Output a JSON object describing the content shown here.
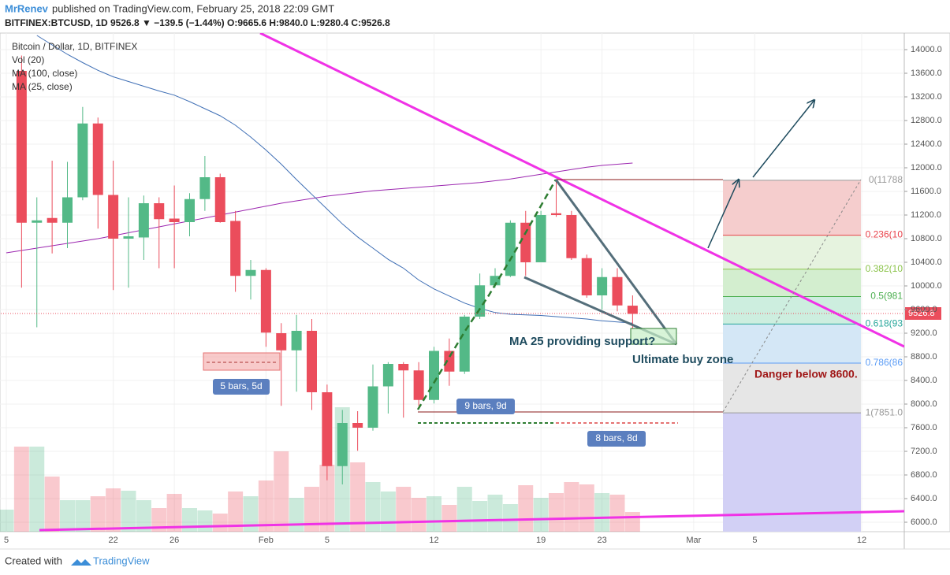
{
  "header": {
    "author": "MrRenev",
    "published": "published on TradingView.com, February 25, 2018 22:09 GMT",
    "symbol_line": "BITFINEX:BTCUSD, 1D 9526.8 ▼ −139.5 (−1.44%) O:9665.6 H:9840.0 L:9280.4 C:9526.8"
  },
  "footer": {
    "created": "Created with",
    "brand": "TradingView"
  },
  "chart_data": {
    "type": "candlestick",
    "title": "Bitcoin / Dollar, 1D, BITFINEX",
    "categories": [
      "5",
      null,
      null,
      null,
      null,
      null,
      null,
      "22",
      null,
      null,
      null,
      "26",
      null,
      null,
      null,
      null,
      null,
      "Feb",
      null,
      null,
      null,
      "5",
      null,
      null,
      null,
      null,
      null,
      null,
      "12",
      null,
      null,
      null,
      null,
      null,
      null,
      "19",
      null,
      null,
      null,
      "23",
      null,
      null,
      null,
      null,
      null,
      "Mar",
      null,
      null,
      null,
      "5",
      null,
      null,
      null,
      null,
      null,
      null,
      "12"
    ],
    "open": [
      null,
      13640,
      11070,
      11150,
      11070,
      11500,
      12750,
      11540,
      10800,
      10820,
      11400,
      11140,
      11080,
      11470,
      11840,
      11100,
      10170,
      10270,
      9200,
      8910,
      9240,
      8200,
      6950,
      7680,
      7600,
      8300,
      8680,
      8570,
      8070,
      8900,
      8550,
      9480,
      10010,
      10170,
      11070,
      10400,
      11230,
      11200,
      10470,
      9840,
      10150,
      9665.6,
      null,
      null,
      null,
      null,
      null,
      null,
      null,
      null,
      null,
      null,
      null,
      null,
      null,
      null,
      null
    ],
    "high": [
      null,
      13900,
      11500,
      12120,
      12100,
      13030,
      12850,
      12120,
      11500,
      11530,
      11500,
      11700,
      11570,
      12200,
      11900,
      11270,
      10440,
      10300,
      9370,
      9510,
      9440,
      8330,
      7900,
      7880,
      8670,
      8710,
      8710,
      8710,
      8970,
      9110,
      9510,
      10210,
      10300,
      11110,
      11270,
      11270,
      11770,
      11270,
      10530,
      10300,
      10300,
      9840,
      null,
      null,
      null,
      null,
      null,
      null,
      null,
      null,
      null,
      null,
      null,
      null,
      null,
      null,
      null
    ],
    "low": [
      null,
      9970,
      9300,
      10550,
      10640,
      11450,
      10970,
      9930,
      9970,
      10440,
      10300,
      10300,
      10840,
      11270,
      11070,
      9900,
      9770,
      8970,
      7970,
      8210,
      7900,
      6710,
      6640,
      7210,
      7550,
      7840,
      7770,
      7970,
      8010,
      8310,
      8510,
      9440,
      9970,
      10150,
      10170,
      10400,
      11170,
      10440,
      9800,
      9600,
      9570,
      9280.4,
      null,
      null,
      null,
      null,
      null,
      null,
      null,
      null,
      null,
      null,
      null,
      null,
      null,
      null,
      null
    ],
    "close": [
      null,
      11070,
      11110,
      11070,
      11500,
      12750,
      11540,
      10800,
      10840,
      11400,
      11130,
      11080,
      11470,
      11840,
      11080,
      10170,
      10270,
      9210,
      8910,
      9240,
      8200,
      6950,
      7680,
      7600,
      8300,
      8680,
      8570,
      8070,
      8900,
      8550,
      9480,
      10010,
      10170,
      11070,
      10400,
      11200,
      11200,
      10470,
      9840,
      10150,
      9670,
      9526.8,
      null,
      null,
      null,
      null,
      null,
      null,
      null,
      null,
      null,
      null,
      null,
      null,
      null,
      null,
      null
    ],
    "up_color": "#53b987",
    "down_color": "#eb4d5c",
    "series": [
      {
        "name": "Vol (20)",
        "type": "volume",
        "values": [
          28,
          108,
          108,
          70,
          40,
          40,
          45,
          55,
          52,
          40,
          30,
          48,
          30,
          27,
          23,
          51,
          45,
          65,
          102,
          43,
          57,
          85,
          158,
          88,
          63,
          51,
          57,
          43,
          45,
          34,
          57,
          39,
          47,
          35,
          59,
          43,
          49,
          63,
          60,
          49,
          47,
          25,
          null,
          null,
          null,
          null,
          null,
          null,
          null,
          null,
          null,
          null,
          null,
          null,
          null,
          null,
          null
        ]
      },
      {
        "name": "MA (100, close)",
        "type": "line",
        "color": "#9c27b0",
        "values": [
          10560,
          10600,
          10640,
          10680,
          10720,
          10760,
          10800,
          10850,
          10900,
          10950,
          11000,
          11050,
          11100,
          11150,
          11200,
          11250,
          11300,
          11350,
          11400,
          11440,
          11480,
          11520,
          11550,
          11580,
          11610,
          11630,
          11650,
          11670,
          11690,
          11710,
          11730,
          11750,
          11780,
          11810,
          11850,
          11890,
          11930,
          11970,
          12010,
          12040,
          12060,
          12080,
          null,
          null,
          null,
          null,
          null,
          null,
          null,
          null,
          null,
          null,
          null,
          null,
          null,
          null,
          null
        ]
      },
      {
        "name": "MA (25, close)",
        "type": "line",
        "color": "#3f6fb5",
        "values": [
          null,
          null,
          14240,
          14080,
          13920,
          13780,
          13650,
          13540,
          13460,
          13380,
          13300,
          13230,
          13120,
          13000,
          12880,
          12720,
          12520,
          12300,
          12060,
          11800,
          11550,
          11300,
          11050,
          10830,
          10640,
          10450,
          10300,
          10100,
          9950,
          9830,
          9710,
          9620,
          9550,
          9520,
          9510,
          9500,
          9480,
          9460,
          9440,
          9410,
          9390,
          9370,
          null,
          null,
          null,
          null,
          null,
          null,
          null,
          null,
          null,
          null,
          null,
          null,
          null,
          null,
          null
        ]
      }
    ],
    "vlim": [
      0,
      300
    ],
    "ylim": [
      5840,
      14280
    ],
    "yticks": [
      {
        "value": 6000,
        "label": "6000.0"
      },
      {
        "value": 6400,
        "label": "6400.0"
      },
      {
        "value": 6800,
        "label": "6800.0"
      },
      {
        "value": 7200,
        "label": "7200.0"
      },
      {
        "value": 7600,
        "label": "7600.0"
      },
      {
        "value": 8000,
        "label": "8000.0"
      },
      {
        "value": 8400,
        "label": "8400.0"
      },
      {
        "value": 8800,
        "label": "8800.0"
      },
      {
        "value": 9200,
        "label": "9200.0"
      },
      {
        "value": 9600,
        "label": "9600.0"
      },
      {
        "value": 10000,
        "label": "10000.0"
      },
      {
        "value": 10400,
        "label": "10400.0"
      },
      {
        "value": 10800,
        "label": "10800.0"
      },
      {
        "value": 11200,
        "label": "11200.0"
      },
      {
        "value": 11600,
        "label": "11600.0"
      },
      {
        "value": 12000,
        "label": "12000.0"
      },
      {
        "value": 12400,
        "label": "12400.0"
      },
      {
        "value": 12800,
        "label": "12800.0"
      },
      {
        "value": 13200,
        "label": "13200.0"
      },
      {
        "value": 13600,
        "label": "13600.0"
      },
      {
        "value": 14000,
        "label": "14000.0"
      }
    ],
    "grid": true,
    "fib_levels": [
      {
        "value": 11788,
        "label": "0(11788",
        "color": "#999999",
        "fill": "#f5cdcd"
      },
      {
        "value": 10859,
        "label": "0.236(10",
        "color": "#e8424a",
        "fill": "#e6f3df"
      },
      {
        "value": 10284,
        "label": "0.382(10",
        "color": "#8bc34a",
        "fill": "#d3eecf"
      },
      {
        "value": 9820,
        "label": "0.5(981",
        "color": "#4caf50",
        "fill": "#cdeedf"
      },
      {
        "value": 9355,
        "label": "0.618(93",
        "color": "#26a69a",
        "fill": "#d4e7f6"
      },
      {
        "value": 8694,
        "label": "0.786(86",
        "color": "#5b9cf6",
        "fill": "#e6e6e6"
      },
      {
        "value": 7851,
        "label": "1(7851.0",
        "color": "#999999",
        "fill": "#d2d0f5"
      }
    ],
    "annotations": [
      "MA 25 providing support?",
      "Ultimate buy zone",
      "Danger below 8600.",
      "5 bars, 5d",
      "9 bars, 9d",
      "8 bars, 8d"
    ]
  }
}
